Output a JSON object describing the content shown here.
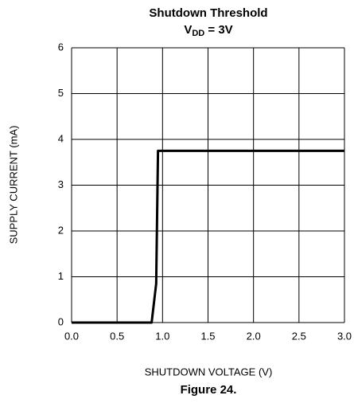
{
  "chart_data": {
    "type": "line",
    "title": "Shutdown Threshold",
    "subtitle": [
      "V",
      "DD",
      " = 3V"
    ],
    "x_label": "SHUTDOWN VOLTAGE (V)",
    "y_label": "SUPPLY CURRENT (mA)",
    "caption": "Figure 24.",
    "x": [
      0,
      0.88,
      0.93,
      0.95,
      3.0
    ],
    "series": [
      {
        "color": "#000000",
        "values": [
          0,
          0,
          0.85,
          3.75,
          3.75
        ]
      }
    ],
    "xlim": [
      0,
      3
    ],
    "xticks": [
      {
        "value": 0,
        "label": "0.0"
      },
      0.5,
      {
        "value": 1,
        "label": "1.0"
      },
      1.5,
      {
        "value": 2,
        "label": "2.0"
      },
      2.5,
      {
        "value": 3,
        "label": "3.0"
      }
    ],
    "ylim": [
      0,
      6
    ],
    "yticks": [
      0,
      1,
      2,
      3,
      4,
      5,
      6
    ],
    "grid": true
  }
}
